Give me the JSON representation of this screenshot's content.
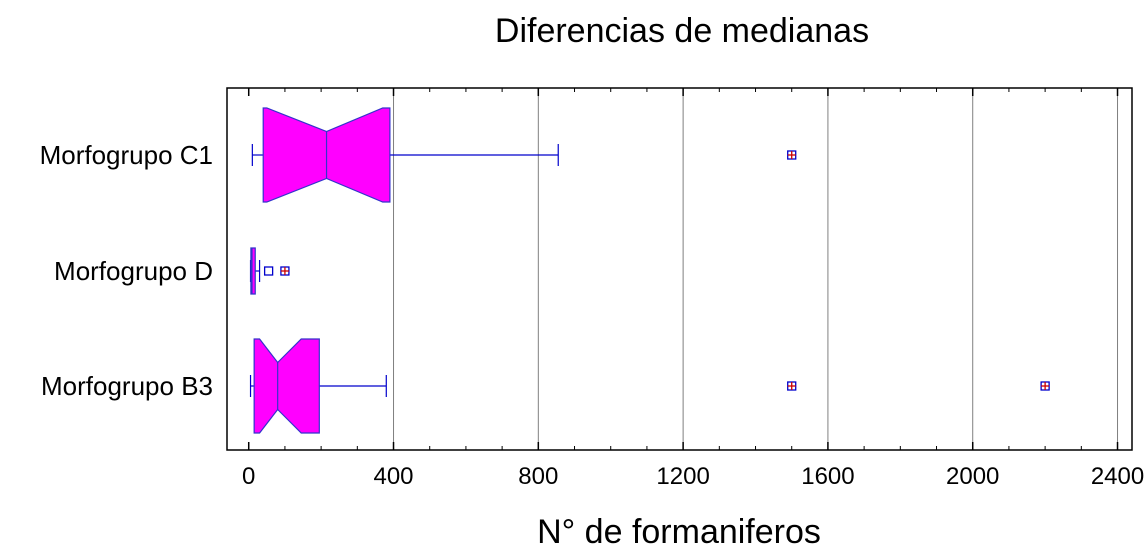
{
  "chart_data": {
    "type": "box",
    "orientation": "horizontal",
    "title": "Diferencias de medianas",
    "xlabel": "N° de formaniferos",
    "ylabel": "",
    "xlim": [
      -60,
      2440
    ],
    "xticks": [
      0,
      400,
      800,
      1200,
      1600,
      2000,
      2400
    ],
    "grid": true,
    "notched": true,
    "colors": {
      "box_fill": "#ff00ff",
      "box_edge": "#3333cc",
      "whisker": "#0000cc",
      "outlier": "#0000cc",
      "far_outlier_cross": "#cc0000",
      "grid": "#808080"
    },
    "series": [
      {
        "name": "Morfogrupo C1",
        "whisker_low": 10,
        "q1": 40,
        "notch_low": 50,
        "median": 215,
        "notch_high": 370,
        "q3": 390,
        "whisker_high": 855,
        "outliers": [],
        "far_outliers": [
          1500
        ]
      },
      {
        "name": "Morfogrupo D",
        "whisker_low": 5,
        "q1": 6,
        "notch_low": 7,
        "median": 9,
        "notch_high": 12,
        "q3": 18,
        "whisker_high": 30,
        "outliers": [
          55
        ],
        "far_outliers": [
          100
        ]
      },
      {
        "name": "Morfogrupo B3",
        "whisker_low": 5,
        "q1": 15,
        "notch_low": 30,
        "median": 80,
        "notch_high": 145,
        "q3": 195,
        "whisker_high": 380,
        "outliers": [],
        "far_outliers": [
          1500,
          2200
        ]
      }
    ]
  }
}
